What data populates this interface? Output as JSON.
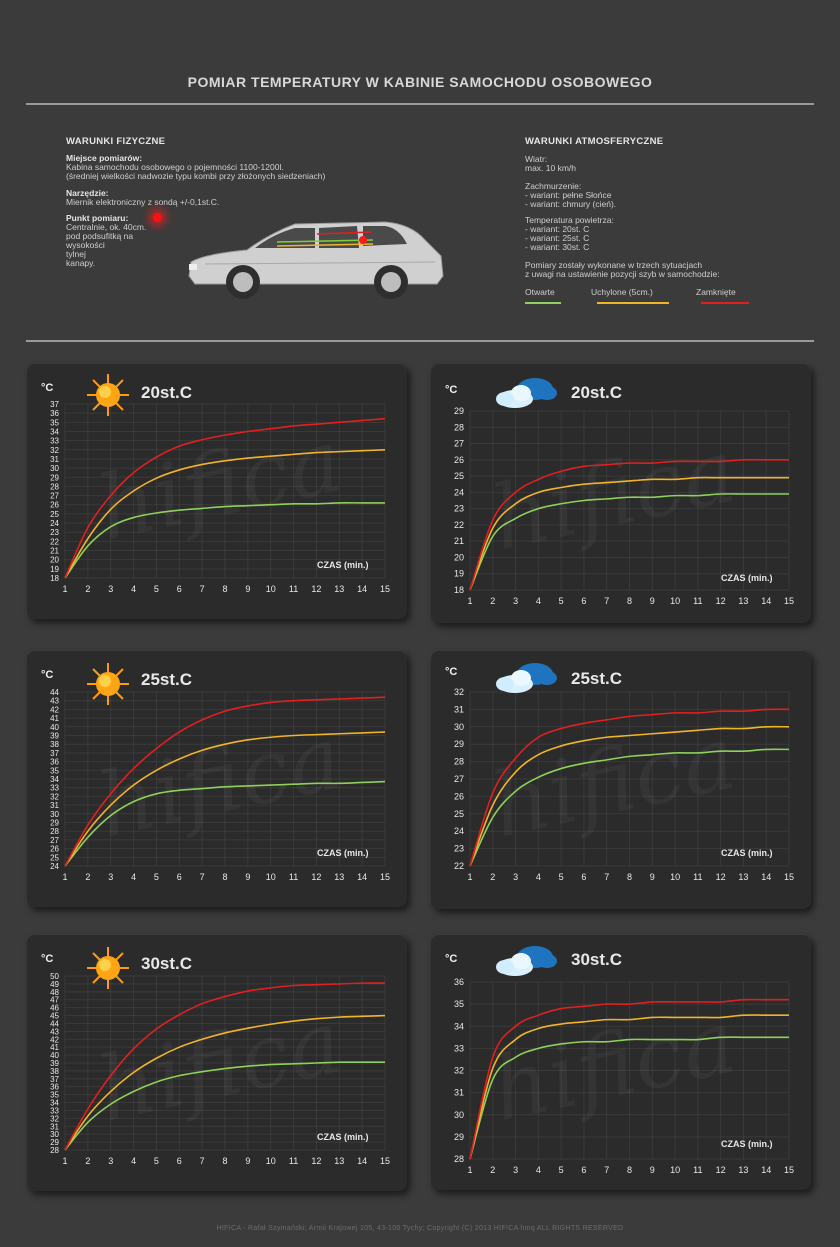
{
  "header": {
    "title": "POMIAR TEMPERATURY W KABINIE SAMOCHODU OSOBOWEGO"
  },
  "physical": {
    "heading": "WARUNKI FIZYCZNE",
    "place_label": "Miejsce pomiarów:",
    "place_line1": "Kabina samochodu osobowego o pojemności 1100-1200l.",
    "place_line2": "(średniej wielkości nadwozie typu kombi przy złożonych siedzeniach)",
    "tool_label": "Narzędzie:",
    "tool_line1": "Miernik elektroniczny z sondą +/-0,1st.C.",
    "point_label": "Punkt pomiaru:",
    "point_lines": [
      "Centralnie, ok. 40cm.",
      "pod podsufitką na",
      "wysokości",
      "tylnej",
      "kanapy."
    ]
  },
  "atmospheric": {
    "heading": "WARUNKI ATMOSFERYCZNE",
    "wind_label": "Wiatr:",
    "wind_value": "max. 10 km/h",
    "cloud_label": "Zachmurzenie:",
    "cloud_v1": "- wariant: pełne Słońce",
    "cloud_v2": "- wariant: chmury (cień).",
    "temp_label": "Temperatura powietrza:",
    "temp_v1": "- wariant: 20st. C",
    "temp_v2": "- wariant: 25st. C",
    "temp_v3": "- wariant: 30st. C",
    "note1": "Pomiary zostały wykonane w trzech sytuacjach",
    "note2": "z uwagi na ustawienie pozycji szyb w samochodzie:"
  },
  "legend": [
    {
      "label": "Otwarte",
      "color": "#8fd05a"
    },
    {
      "label": "Uchylone (5cm.)",
      "color": "#f0b42a"
    },
    {
      "label": "Zamknięte",
      "color": "#e02020"
    }
  ],
  "watermark": "hifica",
  "footer": "HIFICA - Rafał Szymański; Armii Krajowej 105, 43-100 Tychy; Copyright (C) 2013 HIFICA hmq ALL RIGHTS RESERVED",
  "chart_data": [
    {
      "type": "line",
      "title": "20st.C",
      "icon": "sun-icon",
      "ylabel": "°C",
      "xlabel": "CZAS (min.)",
      "x": [
        1,
        2,
        3,
        4,
        5,
        6,
        7,
        8,
        9,
        10,
        11,
        12,
        13,
        14,
        15
      ],
      "ylim": [
        18,
        37
      ],
      "series": [
        {
          "name": "Otwarte",
          "color": "#8fd05a",
          "values": [
            18,
            21.5,
            23.6,
            24.6,
            25.1,
            25.4,
            25.6,
            25.8,
            25.9,
            26,
            26.1,
            26.1,
            26.2,
            26.2,
            26.2
          ]
        },
        {
          "name": "Uchylone (5cm.)",
          "color": "#f0b42a",
          "values": [
            18,
            22.3,
            25.5,
            27.5,
            28.9,
            29.8,
            30.4,
            30.8,
            31.1,
            31.3,
            31.5,
            31.7,
            31.8,
            31.9,
            32
          ]
        },
        {
          "name": "Zamknięte",
          "color": "#e02020",
          "values": [
            18,
            23.5,
            27,
            29.5,
            31.2,
            32.4,
            33.1,
            33.6,
            34,
            34.3,
            34.6,
            34.8,
            35,
            35.2,
            35.4
          ]
        }
      ]
    },
    {
      "type": "line",
      "title": "20st.C",
      "icon": "cloud-icon",
      "ylabel": "°C",
      "xlabel": "CZAS (min.)",
      "x": [
        1,
        2,
        3,
        4,
        5,
        6,
        7,
        8,
        9,
        10,
        11,
        12,
        13,
        14,
        15
      ],
      "ylim": [
        18,
        29
      ],
      "series": [
        {
          "name": "Otwarte",
          "color": "#8fd05a",
          "values": [
            18,
            21.3,
            22.4,
            23,
            23.3,
            23.5,
            23.6,
            23.7,
            23.7,
            23.8,
            23.8,
            23.9,
            23.9,
            23.9,
            23.9
          ]
        },
        {
          "name": "Uchylone (5cm.)",
          "color": "#f0b42a",
          "values": [
            18,
            21.8,
            23.3,
            24,
            24.3,
            24.5,
            24.6,
            24.7,
            24.8,
            24.8,
            24.9,
            24.9,
            24.9,
            24.9,
            24.9
          ]
        },
        {
          "name": "Zamknięte",
          "color": "#e02020",
          "values": [
            18,
            22.3,
            24,
            24.8,
            25.3,
            25.6,
            25.7,
            25.8,
            25.8,
            25.9,
            25.9,
            25.9,
            26,
            26,
            26
          ]
        }
      ]
    },
    {
      "type": "line",
      "title": "25st.C",
      "icon": "sun-icon",
      "ylabel": "°C",
      "xlabel": "CZAS (min.)",
      "x": [
        1,
        2,
        3,
        4,
        5,
        6,
        7,
        8,
        9,
        10,
        11,
        12,
        13,
        14,
        15
      ],
      "ylim": [
        24,
        44
      ],
      "series": [
        {
          "name": "Otwarte",
          "color": "#8fd05a",
          "values": [
            24,
            27.3,
            29.8,
            31.4,
            32.3,
            32.7,
            32.9,
            33.1,
            33.2,
            33.3,
            33.4,
            33.5,
            33.5,
            33.6,
            33.7
          ]
        },
        {
          "name": "Uchylone (5cm.)",
          "color": "#f0b42a",
          "values": [
            24,
            28,
            31,
            33.3,
            35,
            36.3,
            37.3,
            38,
            38.5,
            38.8,
            39,
            39.1,
            39.2,
            39.3,
            39.4
          ]
        },
        {
          "name": "Zamknięte",
          "color": "#e02020",
          "values": [
            24,
            28.7,
            32.3,
            35.2,
            37.5,
            39.4,
            40.8,
            41.8,
            42.4,
            42.8,
            43,
            43.1,
            43.2,
            43.3,
            43.4
          ]
        }
      ]
    },
    {
      "type": "line",
      "title": "25st.C",
      "icon": "cloud-icon",
      "ylabel": "°C",
      "xlabel": "CZAS (min.)",
      "x": [
        1,
        2,
        3,
        4,
        5,
        6,
        7,
        8,
        9,
        10,
        11,
        12,
        13,
        14,
        15
      ],
      "ylim": [
        22,
        32
      ],
      "series": [
        {
          "name": "Otwarte",
          "color": "#8fd05a",
          "values": [
            22,
            24.8,
            26.3,
            27.1,
            27.6,
            27.9,
            28.1,
            28.3,
            28.4,
            28.5,
            28.5,
            28.6,
            28.6,
            28.7,
            28.7
          ]
        },
        {
          "name": "Uchylone (5cm.)",
          "color": "#f0b42a",
          "values": [
            22,
            25.5,
            27.4,
            28.4,
            28.9,
            29.2,
            29.4,
            29.5,
            29.6,
            29.7,
            29.8,
            29.9,
            29.9,
            30,
            30
          ]
        },
        {
          "name": "Zamknięte",
          "color": "#e02020",
          "values": [
            22,
            26.2,
            28.2,
            29.4,
            29.9,
            30.2,
            30.4,
            30.6,
            30.7,
            30.8,
            30.8,
            30.9,
            30.9,
            31,
            31
          ]
        }
      ]
    },
    {
      "type": "line",
      "title": "30st.C",
      "icon": "sun-icon",
      "ylabel": "°C",
      "xlabel": "CZAS (min.)",
      "x": [
        1,
        2,
        3,
        4,
        5,
        6,
        7,
        8,
        9,
        10,
        11,
        12,
        13,
        14,
        15
      ],
      "ylim": [
        28,
        50
      ],
      "series": [
        {
          "name": "Otwarte",
          "color": "#8fd05a",
          "values": [
            28,
            31.5,
            33.8,
            35.4,
            36.6,
            37.4,
            37.9,
            38.3,
            38.6,
            38.8,
            38.9,
            39,
            39.1,
            39.1,
            39.1
          ]
        },
        {
          "name": "Uchylone (5cm.)",
          "color": "#f0b42a",
          "values": [
            28,
            32.3,
            35.4,
            37.8,
            39.6,
            41,
            42,
            42.8,
            43.4,
            43.9,
            44.3,
            44.6,
            44.8,
            44.9,
            45
          ]
        },
        {
          "name": "Zamknięte",
          "color": "#e02020",
          "values": [
            28,
            33.2,
            37.4,
            40.8,
            43.3,
            45.1,
            46.5,
            47.4,
            48.1,
            48.5,
            48.8,
            48.9,
            49,
            49.1,
            49.1
          ]
        }
      ]
    },
    {
      "type": "line",
      "title": "30st.C",
      "icon": "cloud-icon",
      "ylabel": "°C",
      "xlabel": "CZAS (min.)",
      "x": [
        1,
        2,
        3,
        4,
        5,
        6,
        7,
        8,
        9,
        10,
        11,
        12,
        13,
        14,
        15
      ],
      "ylim": [
        28,
        36
      ],
      "series": [
        {
          "name": "Otwarte",
          "color": "#8fd05a",
          "values": [
            28,
            31.6,
            32.6,
            33,
            33.2,
            33.3,
            33.3,
            33.4,
            33.4,
            33.4,
            33.4,
            33.5,
            33.5,
            33.5,
            33.5
          ]
        },
        {
          "name": "Uchylone (5cm.)",
          "color": "#f0b42a",
          "values": [
            28,
            32.1,
            33.4,
            33.9,
            34.1,
            34.2,
            34.3,
            34.3,
            34.4,
            34.4,
            34.4,
            34.4,
            34.5,
            34.5,
            34.5
          ]
        },
        {
          "name": "Zamknięte",
          "color": "#e02020",
          "values": [
            28,
            32.6,
            34,
            34.5,
            34.8,
            34.9,
            35,
            35,
            35.1,
            35.1,
            35.1,
            35.1,
            35.2,
            35.2,
            35.2
          ]
        }
      ]
    }
  ]
}
